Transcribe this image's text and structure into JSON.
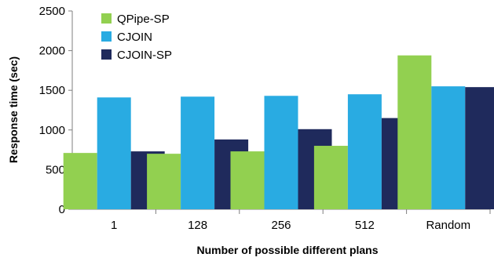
{
  "chart_data": {
    "type": "bar",
    "title": "",
    "xlabel": "Number of possible different plans",
    "ylabel": "Response time (sec)",
    "categories": [
      "1",
      "128",
      "256",
      "512",
      "Random"
    ],
    "ylim": [
      0,
      2500
    ],
    "yticks": [
      0,
      500,
      1000,
      1500,
      2000,
      2500
    ],
    "grid": false,
    "legend_position": "top-left",
    "series": [
      {
        "name": "QPipe-SP",
        "color": "#92D050",
        "values": [
          710,
          700,
          730,
          800,
          1940
        ]
      },
      {
        "name": "CJOIN",
        "color": "#29ABE2",
        "values": [
          1410,
          1420,
          1430,
          1450,
          1550
        ]
      },
      {
        "name": "CJOIN-SP",
        "color": "#1F2A5C",
        "values": [
          730,
          880,
          1010,
          1150,
          1540
        ]
      }
    ]
  }
}
